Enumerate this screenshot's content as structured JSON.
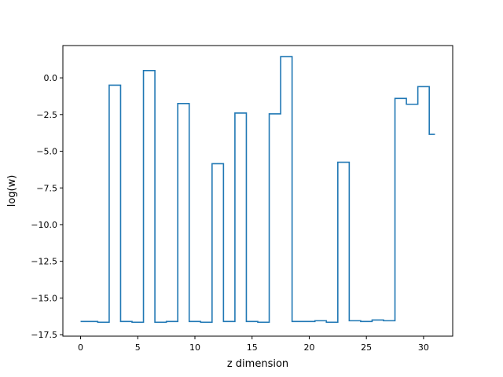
{
  "chart_data": {
    "type": "line",
    "drawstyle": "steps-mid",
    "xlabel": "z dimension",
    "ylabel": "log(w)",
    "xlim": [
      -1.55,
      32.55
    ],
    "ylim": [
      -17.6,
      2.2
    ],
    "x_ticks": [
      0,
      5,
      10,
      15,
      20,
      25,
      30
    ],
    "x_tick_labels": [
      "0",
      "5",
      "10",
      "15",
      "20",
      "25",
      "30"
    ],
    "y_ticks": [
      -17.5,
      -15.0,
      -12.5,
      -10.0,
      -7.5,
      -5.0,
      -2.5,
      0.0
    ],
    "y_tick_labels": [
      "−17.5",
      "−15.0",
      "−12.5",
      "−10.0",
      "−7.5",
      "−5.0",
      "−2.5",
      "0.0"
    ],
    "grid": false,
    "color": "#1f77b4",
    "series": [
      {
        "x": [
          0,
          1,
          2,
          3,
          4,
          5,
          6,
          7,
          8,
          9,
          10,
          11,
          12,
          13,
          14,
          15,
          16,
          17,
          18,
          19,
          20,
          21,
          22,
          23,
          24,
          25,
          26,
          27,
          28,
          29,
          30,
          31
        ],
        "values": [
          -16.6,
          -16.6,
          -16.65,
          -0.5,
          -16.6,
          -16.65,
          0.5,
          -16.65,
          -16.6,
          -1.75,
          -16.6,
          -16.65,
          -5.85,
          -16.6,
          -2.4,
          -16.6,
          -16.65,
          -2.45,
          1.45,
          -16.6,
          -16.6,
          -16.55,
          -16.65,
          -5.75,
          -16.55,
          -16.6,
          -16.5,
          -16.55,
          -1.4,
          -1.8,
          -0.6,
          -3.85
        ]
      }
    ]
  }
}
